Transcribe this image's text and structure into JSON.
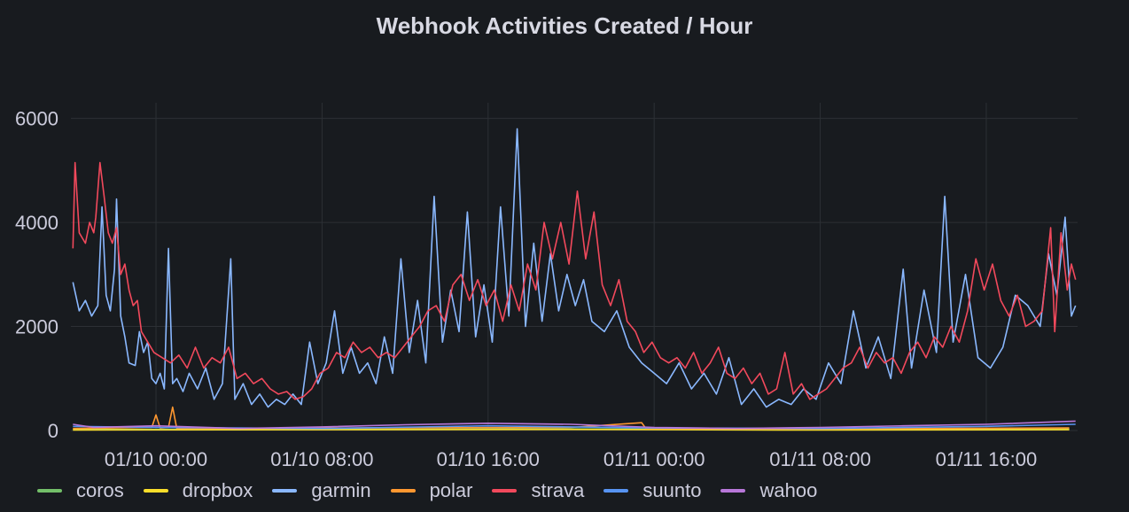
{
  "panel": {
    "title": "Webhook Activities Created / Hour"
  },
  "chart_data": {
    "type": "line",
    "title": "Webhook Activities Created / Hour",
    "xlabel": "",
    "ylabel": "",
    "x_tick_labels": [
      "01/10 00:00",
      "01/10 08:00",
      "01/10 16:00",
      "01/11 00:00",
      "01/11 08:00",
      "01/11 16:00"
    ],
    "x_tick_hours": [
      0,
      8,
      16,
      24,
      32,
      40
    ],
    "xlim_hours": [
      -4.1,
      44.4
    ],
    "ylim": [
      0,
      6300
    ],
    "y_ticks": [
      0,
      2000,
      4000,
      6000
    ],
    "grid": true,
    "legend_position": "bottom-left",
    "series": [
      {
        "name": "coros",
        "color": "#73bf69",
        "points": [
          [
            -4,
            20
          ],
          [
            10,
            25
          ],
          [
            20,
            30
          ],
          [
            30,
            20
          ],
          [
            44,
            30
          ]
        ]
      },
      {
        "name": "dropbox",
        "color": "#fade2a",
        "points": [
          [
            -4,
            10
          ],
          [
            10,
            15
          ],
          [
            20,
            20
          ],
          [
            30,
            10
          ],
          [
            44,
            15
          ]
        ]
      },
      {
        "name": "garmin",
        "color": "#8ab8ff",
        "points": [
          [
            -4.0,
            2850
          ],
          [
            -3.7,
            2300
          ],
          [
            -3.4,
            2500
          ],
          [
            -3.1,
            2200
          ],
          [
            -2.8,
            2400
          ],
          [
            -2.6,
            4300
          ],
          [
            -2.4,
            2600
          ],
          [
            -2.2,
            2300
          ],
          [
            -2.0,
            3100
          ],
          [
            -1.9,
            4450
          ],
          [
            -1.7,
            2200
          ],
          [
            -1.5,
            1800
          ],
          [
            -1.3,
            1300
          ],
          [
            -1.0,
            1250
          ],
          [
            -0.8,
            1900
          ],
          [
            -0.6,
            1500
          ],
          [
            -0.4,
            1700
          ],
          [
            -0.2,
            1000
          ],
          [
            0.0,
            900
          ],
          [
            0.2,
            1100
          ],
          [
            0.4,
            800
          ],
          [
            0.6,
            3500
          ],
          [
            0.8,
            900
          ],
          [
            1.0,
            1000
          ],
          [
            1.3,
            750
          ],
          [
            1.6,
            1100
          ],
          [
            2.0,
            800
          ],
          [
            2.4,
            1200
          ],
          [
            2.8,
            600
          ],
          [
            3.2,
            900
          ],
          [
            3.6,
            3300
          ],
          [
            3.8,
            600
          ],
          [
            4.2,
            900
          ],
          [
            4.6,
            500
          ],
          [
            5.0,
            700
          ],
          [
            5.4,
            450
          ],
          [
            5.8,
            600
          ],
          [
            6.2,
            500
          ],
          [
            6.6,
            700
          ],
          [
            7.0,
            500
          ],
          [
            7.4,
            1700
          ],
          [
            7.8,
            900
          ],
          [
            8.2,
            1300
          ],
          [
            8.6,
            2300
          ],
          [
            9.0,
            1100
          ],
          [
            9.4,
            1600
          ],
          [
            9.8,
            1100
          ],
          [
            10.2,
            1300
          ],
          [
            10.6,
            900
          ],
          [
            11.0,
            1800
          ],
          [
            11.4,
            1100
          ],
          [
            11.8,
            3300
          ],
          [
            12.2,
            1500
          ],
          [
            12.6,
            2500
          ],
          [
            13.0,
            1300
          ],
          [
            13.4,
            4500
          ],
          [
            13.8,
            1700
          ],
          [
            14.2,
            2700
          ],
          [
            14.6,
            1900
          ],
          [
            15.0,
            4200
          ],
          [
            15.4,
            1800
          ],
          [
            15.8,
            2800
          ],
          [
            16.2,
            1700
          ],
          [
            16.6,
            4300
          ],
          [
            17.0,
            2200
          ],
          [
            17.4,
            5800
          ],
          [
            17.8,
            2000
          ],
          [
            18.2,
            3600
          ],
          [
            18.6,
            2100
          ],
          [
            19.0,
            3400
          ],
          [
            19.4,
            2300
          ],
          [
            19.8,
            3000
          ],
          [
            20.2,
            2400
          ],
          [
            20.6,
            2900
          ],
          [
            21.0,
            2100
          ],
          [
            21.6,
            1900
          ],
          [
            22.2,
            2300
          ],
          [
            22.8,
            1600
          ],
          [
            23.4,
            1300
          ],
          [
            24.0,
            1100
          ],
          [
            24.6,
            900
          ],
          [
            25.2,
            1300
          ],
          [
            25.8,
            800
          ],
          [
            26.4,
            1100
          ],
          [
            27.0,
            700
          ],
          [
            27.6,
            1400
          ],
          [
            28.2,
            500
          ],
          [
            28.8,
            800
          ],
          [
            29.4,
            450
          ],
          [
            30.0,
            600
          ],
          [
            30.6,
            500
          ],
          [
            31.2,
            800
          ],
          [
            31.8,
            600
          ],
          [
            32.4,
            1300
          ],
          [
            33.0,
            900
          ],
          [
            33.6,
            2300
          ],
          [
            34.2,
            1200
          ],
          [
            34.8,
            1800
          ],
          [
            35.4,
            1000
          ],
          [
            36.0,
            3100
          ],
          [
            36.4,
            1200
          ],
          [
            37.0,
            2700
          ],
          [
            37.6,
            1500
          ],
          [
            38.0,
            4500
          ],
          [
            38.4,
            1700
          ],
          [
            39.0,
            3000
          ],
          [
            39.6,
            1400
          ],
          [
            40.2,
            1200
          ],
          [
            40.8,
            1600
          ],
          [
            41.4,
            2600
          ],
          [
            42.0,
            2400
          ],
          [
            42.6,
            2000
          ],
          [
            43.0,
            3400
          ],
          [
            43.4,
            2600
          ],
          [
            43.8,
            4100
          ],
          [
            44.1,
            2200
          ],
          [
            44.3,
            2400
          ]
        ]
      },
      {
        "name": "polar",
        "color": "#ff9830",
        "points": [
          [
            -4,
            40
          ],
          [
            -0.2,
            60
          ],
          [
            0.0,
            300
          ],
          [
            0.2,
            50
          ],
          [
            0.6,
            60
          ],
          [
            0.8,
            450
          ],
          [
            1.0,
            40
          ],
          [
            10,
            50
          ],
          [
            20,
            60
          ],
          [
            23.4,
            150
          ],
          [
            23.6,
            40
          ],
          [
            30,
            30
          ],
          [
            44,
            50
          ]
        ]
      },
      {
        "name": "strava",
        "color": "#f2495c",
        "points": [
          [
            -4.0,
            3500
          ],
          [
            -3.9,
            5150
          ],
          [
            -3.7,
            3800
          ],
          [
            -3.4,
            3600
          ],
          [
            -3.2,
            4000
          ],
          [
            -3.0,
            3800
          ],
          [
            -2.9,
            4100
          ],
          [
            -2.7,
            5150
          ],
          [
            -2.5,
            4500
          ],
          [
            -2.3,
            3800
          ],
          [
            -2.1,
            3600
          ],
          [
            -1.9,
            3900
          ],
          [
            -1.7,
            3000
          ],
          [
            -1.5,
            3200
          ],
          [
            -1.3,
            2700
          ],
          [
            -1.1,
            2400
          ],
          [
            -0.9,
            2500
          ],
          [
            -0.7,
            1900
          ],
          [
            -0.4,
            1700
          ],
          [
            -0.1,
            1500
          ],
          [
            0.3,
            1400
          ],
          [
            0.7,
            1300
          ],
          [
            1.1,
            1450
          ],
          [
            1.5,
            1200
          ],
          [
            1.9,
            1600
          ],
          [
            2.3,
            1200
          ],
          [
            2.7,
            1400
          ],
          [
            3.1,
            1300
          ],
          [
            3.5,
            1600
          ],
          [
            3.9,
            1000
          ],
          [
            4.3,
            1100
          ],
          [
            4.7,
            900
          ],
          [
            5.1,
            1000
          ],
          [
            5.5,
            800
          ],
          [
            5.9,
            700
          ],
          [
            6.3,
            750
          ],
          [
            6.7,
            600
          ],
          [
            7.1,
            650
          ],
          [
            7.5,
            800
          ],
          [
            7.9,
            1100
          ],
          [
            8.3,
            1200
          ],
          [
            8.7,
            1500
          ],
          [
            9.1,
            1400
          ],
          [
            9.5,
            1700
          ],
          [
            9.9,
            1500
          ],
          [
            10.3,
            1600
          ],
          [
            10.7,
            1400
          ],
          [
            11.1,
            1500
          ],
          [
            11.5,
            1400
          ],
          [
            11.9,
            1600
          ],
          [
            12.3,
            1800
          ],
          [
            12.7,
            2000
          ],
          [
            13.1,
            2300
          ],
          [
            13.5,
            2400
          ],
          [
            13.9,
            2100
          ],
          [
            14.3,
            2800
          ],
          [
            14.7,
            3000
          ],
          [
            15.1,
            2500
          ],
          [
            15.5,
            2900
          ],
          [
            15.9,
            2400
          ],
          [
            16.3,
            2700
          ],
          [
            16.7,
            2100
          ],
          [
            17.1,
            2800
          ],
          [
            17.5,
            2300
          ],
          [
            17.9,
            3200
          ],
          [
            18.3,
            2700
          ],
          [
            18.7,
            4000
          ],
          [
            19.1,
            3300
          ],
          [
            19.5,
            4000
          ],
          [
            19.9,
            3200
          ],
          [
            20.3,
            4600
          ],
          [
            20.7,
            3300
          ],
          [
            21.1,
            4200
          ],
          [
            21.5,
            2800
          ],
          [
            21.9,
            2400
          ],
          [
            22.3,
            2900
          ],
          [
            22.7,
            2100
          ],
          [
            23.1,
            1900
          ],
          [
            23.5,
            1500
          ],
          [
            23.9,
            1700
          ],
          [
            24.3,
            1400
          ],
          [
            24.7,
            1300
          ],
          [
            25.1,
            1400
          ],
          [
            25.5,
            1200
          ],
          [
            25.9,
            1500
          ],
          [
            26.3,
            1100
          ],
          [
            26.7,
            1300
          ],
          [
            27.1,
            1600
          ],
          [
            27.5,
            1100
          ],
          [
            27.9,
            1000
          ],
          [
            28.3,
            1200
          ],
          [
            28.7,
            900
          ],
          [
            29.1,
            1100
          ],
          [
            29.5,
            700
          ],
          [
            29.9,
            800
          ],
          [
            30.3,
            1500
          ],
          [
            30.7,
            700
          ],
          [
            31.1,
            900
          ],
          [
            31.5,
            600
          ],
          [
            31.9,
            700
          ],
          [
            32.3,
            800
          ],
          [
            32.7,
            1000
          ],
          [
            33.1,
            1200
          ],
          [
            33.5,
            1300
          ],
          [
            33.9,
            1600
          ],
          [
            34.3,
            1200
          ],
          [
            34.7,
            1500
          ],
          [
            35.1,
            1300
          ],
          [
            35.5,
            1400
          ],
          [
            35.9,
            1100
          ],
          [
            36.3,
            1500
          ],
          [
            36.7,
            1700
          ],
          [
            37.1,
            1400
          ],
          [
            37.5,
            1800
          ],
          [
            37.9,
            1600
          ],
          [
            38.3,
            2000
          ],
          [
            38.7,
            1700
          ],
          [
            39.1,
            2300
          ],
          [
            39.5,
            3300
          ],
          [
            39.9,
            2700
          ],
          [
            40.3,
            3200
          ],
          [
            40.7,
            2500
          ],
          [
            41.1,
            2200
          ],
          [
            41.5,
            2600
          ],
          [
            41.9,
            2000
          ],
          [
            42.3,
            2100
          ],
          [
            42.7,
            2300
          ],
          [
            43.1,
            3900
          ],
          [
            43.3,
            1900
          ],
          [
            43.6,
            3800
          ],
          [
            43.9,
            2700
          ],
          [
            44.1,
            3200
          ],
          [
            44.3,
            2900
          ]
        ]
      },
      {
        "name": "suunto",
        "color": "#5794f2",
        "points": [
          [
            -4,
            80
          ],
          [
            0,
            60
          ],
          [
            8,
            40
          ],
          [
            16,
            90
          ],
          [
            24,
            50
          ],
          [
            32,
            40
          ],
          [
            40,
            80
          ],
          [
            44.3,
            120
          ]
        ]
      },
      {
        "name": "wahoo",
        "color": "#b877d9",
        "points": [
          [
            -4,
            120
          ],
          [
            -3,
            60
          ],
          [
            0,
            90
          ],
          [
            4,
            40
          ],
          [
            8,
            70
          ],
          [
            12,
            110
          ],
          [
            16,
            140
          ],
          [
            20,
            120
          ],
          [
            24,
            60
          ],
          [
            28,
            40
          ],
          [
            32,
            60
          ],
          [
            36,
            90
          ],
          [
            40,
            120
          ],
          [
            44.3,
            180
          ]
        ]
      }
    ]
  }
}
